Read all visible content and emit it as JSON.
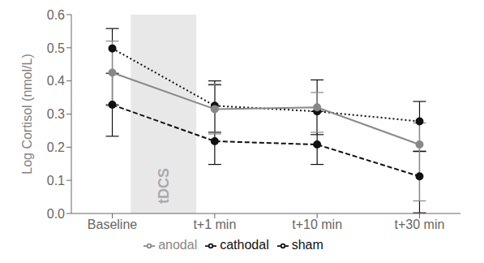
{
  "chart_data": {
    "type": "line",
    "y_label": "Log Cortisol (nmol/L)",
    "categories": [
      "Baseline",
      "t+1 min",
      "t+10 min",
      "t+30 min"
    ],
    "series": [
      {
        "name": "sham",
        "color": "#111111",
        "line_style": "dashed",
        "marker": "circle",
        "values": [
          0.328,
          0.218,
          0.208,
          0.112
        ],
        "yerr_lower": [
          0.095,
          0.07,
          0.06,
          0.11
        ],
        "yerr_upper": [
          0.095,
          0.17,
          0.1,
          0.075
        ]
      },
      {
        "name": "cathodal",
        "color": "#111111",
        "line_style": "dotted",
        "marker": "circle",
        "values": [
          0.498,
          0.325,
          0.308,
          0.278
        ],
        "yerr_lower": [
          0.17,
          0.08,
          0.07,
          0.09
        ],
        "yerr_upper": [
          0.06,
          0.075,
          0.095,
          0.06
        ]
      },
      {
        "name": "anodal",
        "color": "#888888",
        "line_style": "solid",
        "marker": "circle",
        "values": [
          0.425,
          0.315,
          0.32,
          0.208
        ],
        "yerr_lower": [
          0.1,
          0.075,
          0.075,
          0.17
        ],
        "yerr_upper": [
          0.095,
          0.075,
          0.045,
          0.065
        ]
      }
    ],
    "ylim": [
      0.0,
      0.6
    ],
    "yticks": [
      {
        "value": 0.0,
        "label": "0.0"
      },
      0.1,
      0.2,
      0.3,
      0.4,
      0.5,
      0.6
    ],
    "grid": false,
    "legend": "bottom",
    "annotations": [
      {
        "text": "tDCS",
        "x_from": "Baseline",
        "x_to": "t+1 min",
        "color": "#e8e8e8",
        "text_color": "#aaaaaa"
      }
    ]
  }
}
